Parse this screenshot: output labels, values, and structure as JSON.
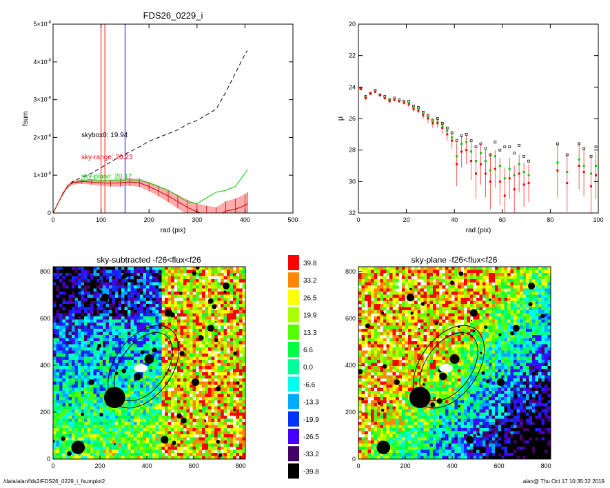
{
  "footer": {
    "path": "/data/alan/fds2/FDS26_0229_i_fsumplot2",
    "stamp": "alan@  Thu Oct 17 10:35:32 2019"
  },
  "chart_data": [
    {
      "type": "line",
      "title": "FDS26_0229_i",
      "xlabel": "rad (pix)",
      "ylabel": "fsum",
      "xlim": [
        0,
        500
      ],
      "ylim": [
        0,
        5e-08
      ],
      "xticks": [
        "0",
        "100",
        "200",
        "300",
        "400",
        "500"
      ],
      "yticks": [
        "0",
        "1×10^-8",
        "2×10^-8",
        "3×10^-8",
        "4×10^-8",
        "5×10^-8"
      ],
      "annotations": [
        {
          "text": "skybox0: 19.94",
          "color": "#000000"
        },
        {
          "text": "sky-range: 20.23",
          "color": "#ff0000"
        },
        {
          "text": "sky-plane: 20.17",
          "color": "#00cc00"
        }
      ],
      "vlines": [
        {
          "x": 100,
          "color": "#ff0000"
        },
        {
          "x": 108,
          "color": "#ff0000"
        },
        {
          "x": 150,
          "color": "#0000ff"
        }
      ],
      "series": [
        {
          "style": "dashed",
          "color": "#000000",
          "x": [
            0,
            10,
            20,
            30,
            40,
            60,
            80,
            100,
            120,
            140,
            160,
            180,
            200,
            220,
            240,
            260,
            280,
            300,
            320,
            340,
            360,
            380,
            400,
            405
          ],
          "y": [
            0,
            2.5e-09,
            5e-09,
            7e-09,
            8.2e-09,
            9.5e-09,
            1.05e-08,
            1.2e-08,
            1.35e-08,
            1.5e-08,
            1.62e-08,
            1.75e-08,
            1.9e-08,
            2e-08,
            2.1e-08,
            2.2e-08,
            2.35e-08,
            2.45e-08,
            2.6e-08,
            2.75e-08,
            3.2e-08,
            3.7e-08,
            4.2e-08,
            4.3e-08
          ]
        },
        {
          "style": "solid",
          "color": "#00cc00",
          "x": [
            0,
            10,
            20,
            30,
            40,
            60,
            80,
            100,
            120,
            140,
            160,
            180,
            200,
            220,
            240,
            260,
            280,
            300,
            320,
            340,
            360,
            380,
            400,
            405
          ],
          "y": [
            0,
            2.5e-09,
            5e-09,
            7e-09,
            8e-09,
            8.6e-09,
            8.8e-09,
            8.6e-09,
            8.5e-09,
            8.6e-09,
            8.8e-09,
            8.6e-09,
            8e-09,
            7e-09,
            6e-09,
            4.5e-09,
            3e-09,
            2.5e-09,
            4e-09,
            5.5e-09,
            6e-09,
            7e-09,
            1.05e-08,
            1.15e-08
          ]
        },
        {
          "style": "solid",
          "color": "#cc0000",
          "x": [
            0,
            10,
            20,
            30,
            40,
            60,
            80,
            100,
            120,
            140,
            160,
            180,
            200,
            220,
            240,
            260,
            280,
            300,
            320,
            340,
            360,
            380,
            400,
            405
          ],
          "y": [
            0,
            2.5e-09,
            5e-09,
            7e-09,
            8e-09,
            8.3e-09,
            8.2e-09,
            8e-09,
            7.9e-09,
            8e-09,
            8.2e-09,
            8e-09,
            7e-09,
            5.8e-09,
            4.5e-09,
            3e-09,
            1.5e-09,
            3e-10,
            -5e-10,
            -1e-09,
            5e-10,
            1e-09,
            2e-09,
            2.5e-09
          ],
          "err": [
            0,
            2e-10,
            4e-10,
            5e-10,
            5e-10,
            6e-10,
            7e-10,
            8e-10,
            9e-10,
            1e-09,
            1e-09,
            1.1e-09,
            1.2e-09,
            1.4e-09,
            1.6e-09,
            1.8e-09,
            2e-09,
            2.2e-09,
            2.4e-09,
            2.5e-09,
            2.6e-09,
            2.8e-09,
            3e-09,
            3e-09
          ]
        }
      ]
    },
    {
      "type": "scatter",
      "title": "",
      "xlabel": "rad (pix)",
      "ylabel": "μ",
      "xlim": [
        0,
        100
      ],
      "ylim": [
        32,
        20
      ],
      "xticks": [
        "0",
        "20",
        "40",
        "60",
        "80",
        "100"
      ],
      "yticks": [
        "20",
        "22",
        "24",
        "26",
        "28",
        "30",
        "32"
      ],
      "series": [
        {
          "name": "skybox0",
          "color": "#000000",
          "x": [
            1,
            3,
            5,
            7,
            9,
            11,
            13,
            15,
            17,
            19,
            21,
            23,
            25,
            27,
            29,
            31,
            33,
            35,
            37,
            39,
            41,
            43,
            45,
            47,
            49,
            51,
            53,
            55,
            57,
            59,
            61,
            63,
            65,
            67,
            69,
            71,
            83,
            87,
            92,
            94,
            97,
            99
          ],
          "y": [
            24.1,
            24.6,
            24.4,
            24.2,
            24.5,
            24.6,
            24.8,
            24.7,
            24.8,
            24.9,
            24.9,
            25.2,
            25.3,
            25.6,
            25.8,
            26.1,
            26.0,
            26.3,
            26.6,
            26.9,
            27.4,
            27.1,
            27.0,
            27.4,
            27.8,
            27.6,
            27.9,
            28.3,
            27.5,
            28.0,
            27.8,
            27.8,
            28.2,
            27.7,
            28.4,
            28.7,
            27.6,
            28.3,
            27.6,
            27.9,
            28.4,
            27.8
          ]
        },
        {
          "name": "sky-plane",
          "color": "#00cc00",
          "x": [
            1,
            3,
            5,
            7,
            9,
            11,
            13,
            15,
            17,
            19,
            21,
            23,
            25,
            27,
            29,
            31,
            33,
            35,
            37,
            39,
            41,
            43,
            45,
            47,
            49,
            51,
            53,
            55,
            57,
            59,
            61,
            63,
            65,
            67,
            69,
            71,
            83,
            87,
            92,
            94,
            97,
            99
          ],
          "y": [
            24.1,
            24.7,
            24.4,
            24.3,
            24.5,
            24.7,
            24.8,
            24.8,
            24.9,
            25.0,
            25.0,
            25.3,
            25.4,
            25.7,
            25.9,
            26.2,
            26.2,
            26.5,
            26.8,
            27.2,
            28.4,
            27.6,
            27.5,
            28.1,
            28.7,
            28.2,
            28.7,
            29.3,
            28.4,
            29.0,
            29.8,
            29.2,
            29.6,
            28.9,
            29.4,
            29.6,
            28.8,
            29.4,
            28.6,
            29.0,
            29.5,
            29.0
          ]
        },
        {
          "name": "sky-range",
          "color": "#ff0000",
          "x": [
            1,
            3,
            5,
            7,
            9,
            11,
            13,
            15,
            17,
            19,
            21,
            23,
            25,
            27,
            29,
            31,
            33,
            35,
            37,
            39,
            41,
            43,
            45,
            47,
            49,
            51,
            53,
            55,
            57,
            59,
            61,
            63,
            65,
            67,
            69,
            71,
            83,
            87,
            92,
            94,
            97,
            99
          ],
          "y": [
            24.1,
            24.7,
            24.4,
            24.3,
            24.5,
            24.7,
            24.9,
            24.8,
            24.9,
            25.0,
            25.1,
            25.4,
            25.5,
            25.8,
            26.0,
            26.3,
            26.3,
            26.6,
            27.0,
            27.4,
            28.9,
            28.1,
            28.0,
            28.7,
            29.5,
            28.9,
            29.5,
            30.0,
            29.2,
            30.0,
            30.9,
            29.8,
            30.5,
            29.5,
            30.2,
            30.1,
            29.3,
            30.1,
            29.0,
            29.4,
            30.3,
            29.6
          ],
          "err": [
            0.1,
            0.15,
            0.1,
            0.1,
            0.1,
            0.1,
            0.1,
            0.1,
            0.1,
            0.1,
            0.15,
            0.2,
            0.2,
            0.25,
            0.3,
            0.3,
            0.3,
            0.35,
            0.4,
            0.5,
            1.4,
            1.0,
            0.9,
            1.2,
            1.6,
            1.3,
            1.5,
            1.8,
            1.2,
            1.5,
            1.8,
            1.3,
            1.5,
            1.2,
            1.4,
            1.2,
            1.7,
            1.8,
            1.5,
            1.5,
            1.8,
            1.5
          ]
        }
      ]
    },
    {
      "type": "heatmap",
      "title": "sky-subtracted -f26<flux<f26",
      "xlim": [
        0,
        820
      ],
      "ylim": [
        0,
        820
      ],
      "xticks": [
        "0",
        "200",
        "400",
        "600",
        "800"
      ],
      "yticks": [
        "0",
        "200",
        "400",
        "600",
        "800"
      ]
    },
    {
      "type": "heatmap",
      "title": "sky-plane -f26<flux<f26",
      "xlim": [
        0,
        820
      ],
      "ylim": [
        0,
        820
      ],
      "xticks": [
        "0",
        "200",
        "400",
        "600",
        "800"
      ],
      "yticks": [
        "0",
        "200",
        "400",
        "600",
        "800"
      ]
    },
    {
      "type": "table",
      "title": "",
      "colorbar": [
        {
          "label": "39.8",
          "color": "#ff0000"
        },
        {
          "label": "33.2",
          "color": "#ff8800"
        },
        {
          "label": "26.5",
          "color": "#ffff00"
        },
        {
          "label": "19.9",
          "color": "#aaff00"
        },
        {
          "label": "13.3",
          "color": "#55ff00"
        },
        {
          "label": "6.6",
          "color": "#00ff44"
        },
        {
          "label": "0.0",
          "color": "#00ff99"
        },
        {
          "label": "-6.6",
          "color": "#00ffee"
        },
        {
          "label": "-13.3",
          "color": "#00aaff"
        },
        {
          "label": "-19.9",
          "color": "#0033ff"
        },
        {
          "label": "-26.5",
          "color": "#4400ff"
        },
        {
          "label": "-33.2",
          "color": "#440066"
        },
        {
          "label": "-39.8",
          "color": "#000000"
        }
      ]
    }
  ]
}
